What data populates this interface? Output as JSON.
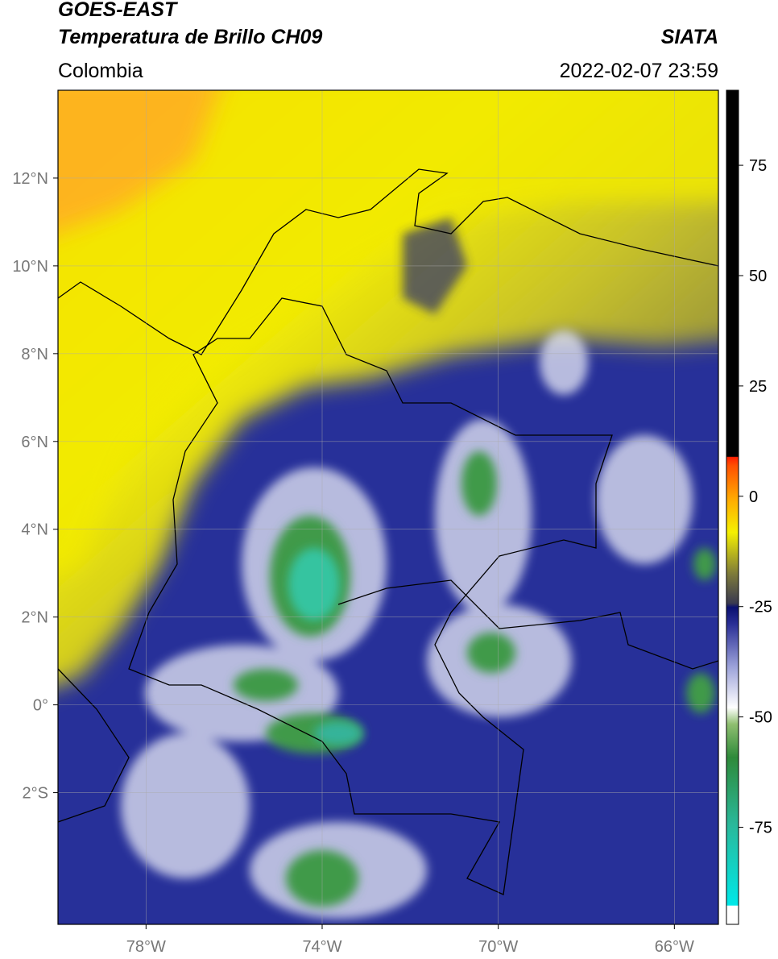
{
  "header": {
    "title_line1": "GOES-EAST",
    "title_line2": "Temperatura de Brillo CH09",
    "source": "SIATA",
    "region": "Colombia",
    "datetime": "2022-02-07 23:59"
  },
  "map": {
    "xlim": [
      -80,
      -65
    ],
    "ylim": [
      -5,
      14
    ],
    "xticks": [
      {
        "value": -78,
        "label": "78°W"
      },
      {
        "value": -74,
        "label": "74°W"
      },
      {
        "value": -70,
        "label": "70°W"
      },
      {
        "value": -66,
        "label": "66°W"
      }
    ],
    "yticks": [
      {
        "value": 12,
        "label": "12°N"
      },
      {
        "value": 10,
        "label": "10°N"
      },
      {
        "value": 8,
        "label": "8°N"
      },
      {
        "value": 6,
        "label": "6°N"
      },
      {
        "value": 4,
        "label": "4°N"
      },
      {
        "value": 2,
        "label": "2°N"
      },
      {
        "value": 0,
        "label": "0°"
      },
      {
        "value": -2,
        "label": "2°S"
      }
    ]
  },
  "colorbar": {
    "lim": [
      -97,
      92
    ],
    "ticks": [
      75,
      50,
      25,
      0,
      -25,
      -50,
      -75
    ]
  }
}
